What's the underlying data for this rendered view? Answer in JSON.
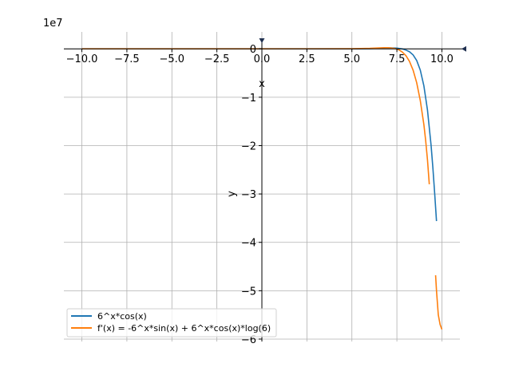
{
  "chart_data": {
    "type": "line",
    "xlabel": "x",
    "ylabel": "y",
    "scale_label": "1e7",
    "xlim": [
      -11,
      11
    ],
    "ylim": [
      -6.05,
      0.35
    ],
    "y_scale": 10000000,
    "grid": true,
    "legend_position": "lower-left",
    "x_ticks": [
      -10,
      -7.5,
      -5,
      -2.5,
      0,
      2.5,
      5,
      7.5,
      10
    ],
    "x_tick_labels": [
      "−10.0",
      "−7.5",
      "−5.0",
      "−2.5",
      "0.0",
      "2.5",
      "5.0",
      "7.5",
      "10.0"
    ],
    "y_ticks": [
      0,
      -1,
      -2,
      -3,
      -4,
      -5,
      -6
    ],
    "y_tick_labels": [
      "0",
      "−1",
      "−2",
      "−3",
      "−4",
      "−5",
      "−6"
    ],
    "series": [
      {
        "name": "6^x*cos(x)",
        "color": "#1f77b4",
        "segments": [
          {
            "x": [
              -10,
              0,
              5,
              6,
              7,
              7.5,
              7.8,
              8.0,
              8.2,
              8.4,
              8.6,
              8.8,
              9.0,
              9.2,
              9.4,
              9.5,
              9.6,
              9.7
            ],
            "y": [
              0,
              1,
              2204,
              44790,
              210690,
              160000,
              -10620,
              -245500,
              -599500,
              -1249000,
              -2412000,
              -4396000,
              -7667000,
              -12690000,
              -19980000,
              -24640000,
              -29950000,
              -35600000
            ]
          }
        ]
      },
      {
        "name": "f'(x) = -6^x*sin(x) + 6^x*cos(x)*log(6)",
        "color": "#ff7f0e",
        "segments": [
          {
            "x": [
              -10,
              0,
              5,
              6,
              6.8,
              7.0,
              7.2,
              7.4,
              7.6,
              7.8,
              8.0,
              8.2,
              8.4,
              8.6,
              8.8,
              9.0,
              9.1,
              9.2,
              9.3
            ],
            "y": [
              0,
              2,
              31000,
              100000,
              233000,
              230000,
              180000,
              60000,
              -180000,
              -650000,
              -1400000,
              -2600000,
              -4400000,
              -7000000,
              -10700000,
              -15700000,
              -19000000,
              -23000000,
              -28000000
            ]
          },
          {
            "x": [
              9.65,
              9.7,
              9.8,
              9.9,
              10.0
            ],
            "y": [
              -46800000,
              -50000000,
              -55000000,
              -57000000,
              -58000000
            ]
          }
        ]
      }
    ]
  }
}
